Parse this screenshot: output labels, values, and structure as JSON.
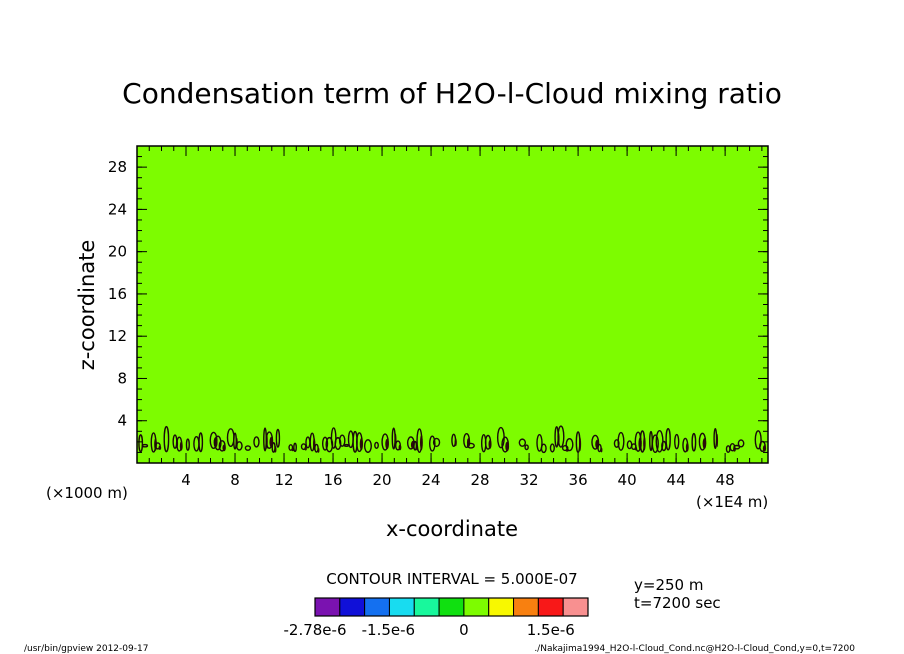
{
  "chart_data": {
    "type": "heatmap",
    "title": "Condensation term of H2O-l-Cloud mixing ratio",
    "xlabel": "x-coordinate",
    "ylabel": "z-coordinate",
    "x_scale_note_left": "(×1000 m)",
    "x_scale_note_right": "(×1E4 m)",
    "xlim": [
      0,
      51.5
    ],
    "ylim": [
      0,
      30
    ],
    "x_ticks": [
      4,
      8,
      12,
      16,
      20,
      24,
      28,
      32,
      36,
      40,
      44,
      48
    ],
    "y_ticks": [
      4,
      8,
      12,
      16,
      20,
      24,
      28
    ],
    "background_level": "0",
    "field_color": "#7dfc00",
    "cloud_band": {
      "z_min": 1,
      "z_max": 3.5
    },
    "contour_interval_text": "CONTOUR INTERVAL = 5.000E-07",
    "colorbar": {
      "colors": [
        "#7a12b0",
        "#1010d8",
        "#1470f0",
        "#18dcf0",
        "#18f89c",
        "#10e010",
        "#7dfc00",
        "#f8f800",
        "#f88010",
        "#f81818",
        "#f89090"
      ],
      "tick_labels": [
        "-2.78e-6",
        "-1.5e-6",
        "0",
        "1.5e-6"
      ]
    },
    "info": {
      "y": "y=250 m",
      "t": "t=7200 sec"
    },
    "footer_left": "/usr/bin/gpview  2012-09-17",
    "footer_right": "./Nakajima1994_H2O-l-Cloud_Cond.nc@H2O-l-Cloud_Cond,y=0,t=7200"
  }
}
